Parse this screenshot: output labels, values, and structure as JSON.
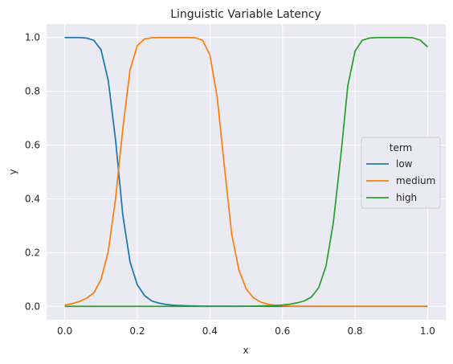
{
  "chart_data": {
    "type": "line",
    "title": "Linguistic Variable Latency",
    "xlabel": "x",
    "ylabel": "y",
    "xlim": [
      -0.05,
      1.05
    ],
    "ylim": [
      -0.05,
      1.05
    ],
    "xticks": [
      0.0,
      0.2,
      0.4,
      0.6,
      0.8,
      1.0
    ],
    "yticks": [
      0.0,
      0.2,
      0.4,
      0.6,
      0.8,
      1.0
    ],
    "grid": true,
    "legend": {
      "title": "term",
      "position": "center-right"
    },
    "x": [
      0.0,
      0.02,
      0.04,
      0.06,
      0.08,
      0.1,
      0.12,
      0.14,
      0.16,
      0.18,
      0.2,
      0.22,
      0.24,
      0.26,
      0.28,
      0.3,
      0.32,
      0.34,
      0.36,
      0.38,
      0.4,
      0.42,
      0.44,
      0.46,
      0.48,
      0.5,
      0.52,
      0.54,
      0.56,
      0.58,
      0.6,
      0.62,
      0.64,
      0.66,
      0.68,
      0.7,
      0.72,
      0.74,
      0.76,
      0.78,
      0.8,
      0.82,
      0.84,
      0.86,
      0.88,
      0.9,
      0.92,
      0.94,
      0.96,
      0.98,
      1.0
    ],
    "series": [
      {
        "name": "low",
        "color": "#1f77b4",
        "values": [
          1.0,
          1.0,
          1.0,
          0.998,
          0.99,
          0.955,
          0.84,
          0.62,
          0.34,
          0.165,
          0.08,
          0.04,
          0.02,
          0.012,
          0.007,
          0.004,
          0.003,
          0.002,
          0.0015,
          0.001,
          0.001,
          0.0008,
          0.0007,
          0.0006,
          0.0005,
          0.0004,
          0.0003,
          0.0003,
          0.0002,
          0.0002,
          0.0002,
          0.0001,
          0.0001,
          0.0001,
          0.0001,
          0.0001,
          0.0,
          0.0,
          0.0,
          0.0,
          0.0,
          0.0,
          0.0,
          0.0,
          0.0,
          0.0,
          0.0,
          0.0,
          0.0,
          0.0,
          0.0
        ]
      },
      {
        "name": "medium",
        "color": "#ff7f0e",
        "values": [
          0.005,
          0.01,
          0.018,
          0.03,
          0.05,
          0.1,
          0.205,
          0.4,
          0.66,
          0.88,
          0.97,
          0.995,
          0.999,
          1.0,
          1.0,
          1.0,
          1.0,
          1.0,
          0.999,
          0.99,
          0.935,
          0.78,
          0.52,
          0.27,
          0.135,
          0.065,
          0.032,
          0.016,
          0.008,
          0.004,
          0.002,
          0.001,
          0.0005,
          0.0,
          0.0,
          0.0,
          0.0,
          0.0,
          0.0,
          0.0,
          0.0,
          0.0,
          0.0,
          0.0,
          0.0,
          0.0,
          0.0,
          0.0,
          0.0,
          0.0,
          0.0
        ]
      },
      {
        "name": "high",
        "color": "#2ca02c",
        "values": [
          0.0,
          0.0,
          0.0,
          0.0,
          0.0,
          0.0,
          0.0,
          0.0,
          0.0,
          0.0,
          0.0,
          0.0,
          0.0,
          0.0,
          0.0,
          0.0,
          0.0,
          0.0,
          0.0,
          0.0,
          0.0,
          0.0,
          0.0,
          0.0,
          0.0,
          0.0005,
          0.001,
          0.0015,
          0.002,
          0.003,
          0.005,
          0.008,
          0.013,
          0.02,
          0.035,
          0.07,
          0.15,
          0.31,
          0.55,
          0.82,
          0.95,
          0.99,
          0.998,
          1.0,
          1.0,
          1.0,
          1.0,
          1.0,
          0.999,
          0.99,
          0.965
        ]
      }
    ]
  }
}
